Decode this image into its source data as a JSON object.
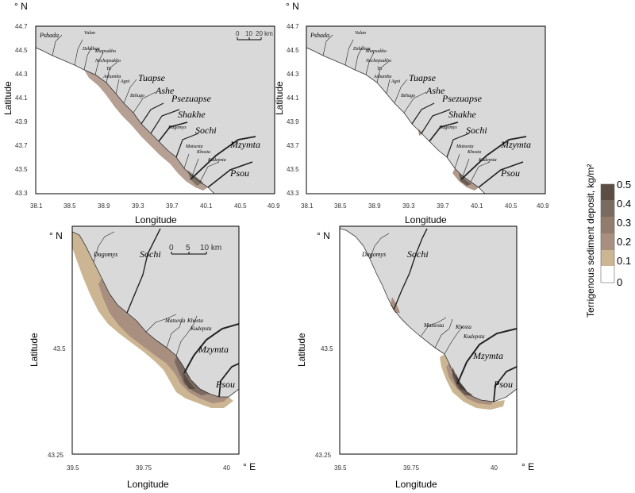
{
  "axes": {
    "latitude_label": "Latitude",
    "longitude_label": "Longitude",
    "north": "° N",
    "east": "° E",
    "top_x_ticks": [
      "38.1",
      "38.5",
      "38.9",
      "39.3",
      "39.7",
      "40.1",
      "40.5",
      "40.9"
    ],
    "top_y_ticks": [
      "44.7",
      "44.5",
      "44.3",
      "44.1",
      "43.9",
      "43.7",
      "43.5",
      "43.3"
    ],
    "bottom_x_ticks": [
      "39.5",
      "39.75",
      "40"
    ],
    "bottom_y_ticks": [
      "43.5",
      "43.25"
    ]
  },
  "scales": {
    "top": {
      "zero": "0",
      "mid": "10",
      "end": "20 km"
    },
    "bottom": {
      "zero": "0",
      "mid": "5",
      "end": "10 km"
    }
  },
  "rivers_top": {
    "big": [
      "Tuapse",
      "Ashe",
      "Psezuapse",
      "Shakhe",
      "Sochi",
      "Mzymta",
      "Psou"
    ],
    "small": [
      "Pshada",
      "Vulan",
      "Dzhubga",
      "Shapsukho",
      "Nechepsukho",
      "Tu",
      "Ashamba",
      "Agoi",
      "Bzhugo",
      "Dagomys",
      "Matsesta",
      "Khosta",
      "Kudepsta"
    ]
  },
  "rivers_bottom": {
    "big": [
      "Sochi",
      "Mzymta",
      "Psou"
    ],
    "small": [
      "Dagomys",
      "Matsesta",
      "Khosta",
      "Kudepsta"
    ]
  },
  "legend": {
    "title": "Terrigenous sediment deposit, kg/m²",
    "levels": [
      "0.5",
      "0.4",
      "0.3",
      "0.2",
      "0.1",
      "0"
    ],
    "colors": [
      "#5b4d44",
      "#7a6b60",
      "#917c6e",
      "#a88f80",
      "#ccb592",
      "#ffffff"
    ]
  },
  "colors": {
    "land": "#d9d9d9",
    "sea": "#ffffff"
  }
}
